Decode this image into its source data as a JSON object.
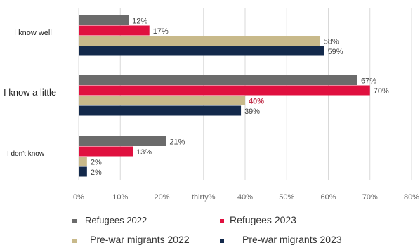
{
  "chart_data": {
    "type": "bar",
    "orientation": "horizontal",
    "categories": [
      "I know well",
      "I know a little",
      "I don't know"
    ],
    "series": [
      {
        "name": "Refugees 2022",
        "color": "#6b6b6b",
        "values": [
          12,
          67,
          21
        ],
        "labels": [
          "12%",
          "67%",
          "21%"
        ]
      },
      {
        "name": "Refugees 2023",
        "color": "#e0103f",
        "values": [
          17,
          70,
          13
        ],
        "labels": [
          "17%",
          "70%",
          "13%"
        ]
      },
      {
        "name": "Pre-war migrants 2022",
        "color": "#c8b98a",
        "values": [
          58,
          40,
          2
        ],
        "labels": [
          "58%",
          "40%",
          "2%"
        ]
      },
      {
        "name": "Pre-war migrants 2023",
        "color": "#13294b",
        "values": [
          59,
          39,
          2
        ],
        "labels": [
          "59%",
          "39%",
          "2%"
        ]
      }
    ],
    "highlight_label_color": "#c0304a",
    "xlim": [
      0,
      80
    ],
    "xticks": [
      "0%",
      "10%",
      "20%",
      "thirty%",
      "40%",
      "50%",
      "60%",
      "70%",
      "80%"
    ],
    "grid": true,
    "legend_position": "bottom",
    "title": "",
    "xlabel": "",
    "ylabel": ""
  }
}
